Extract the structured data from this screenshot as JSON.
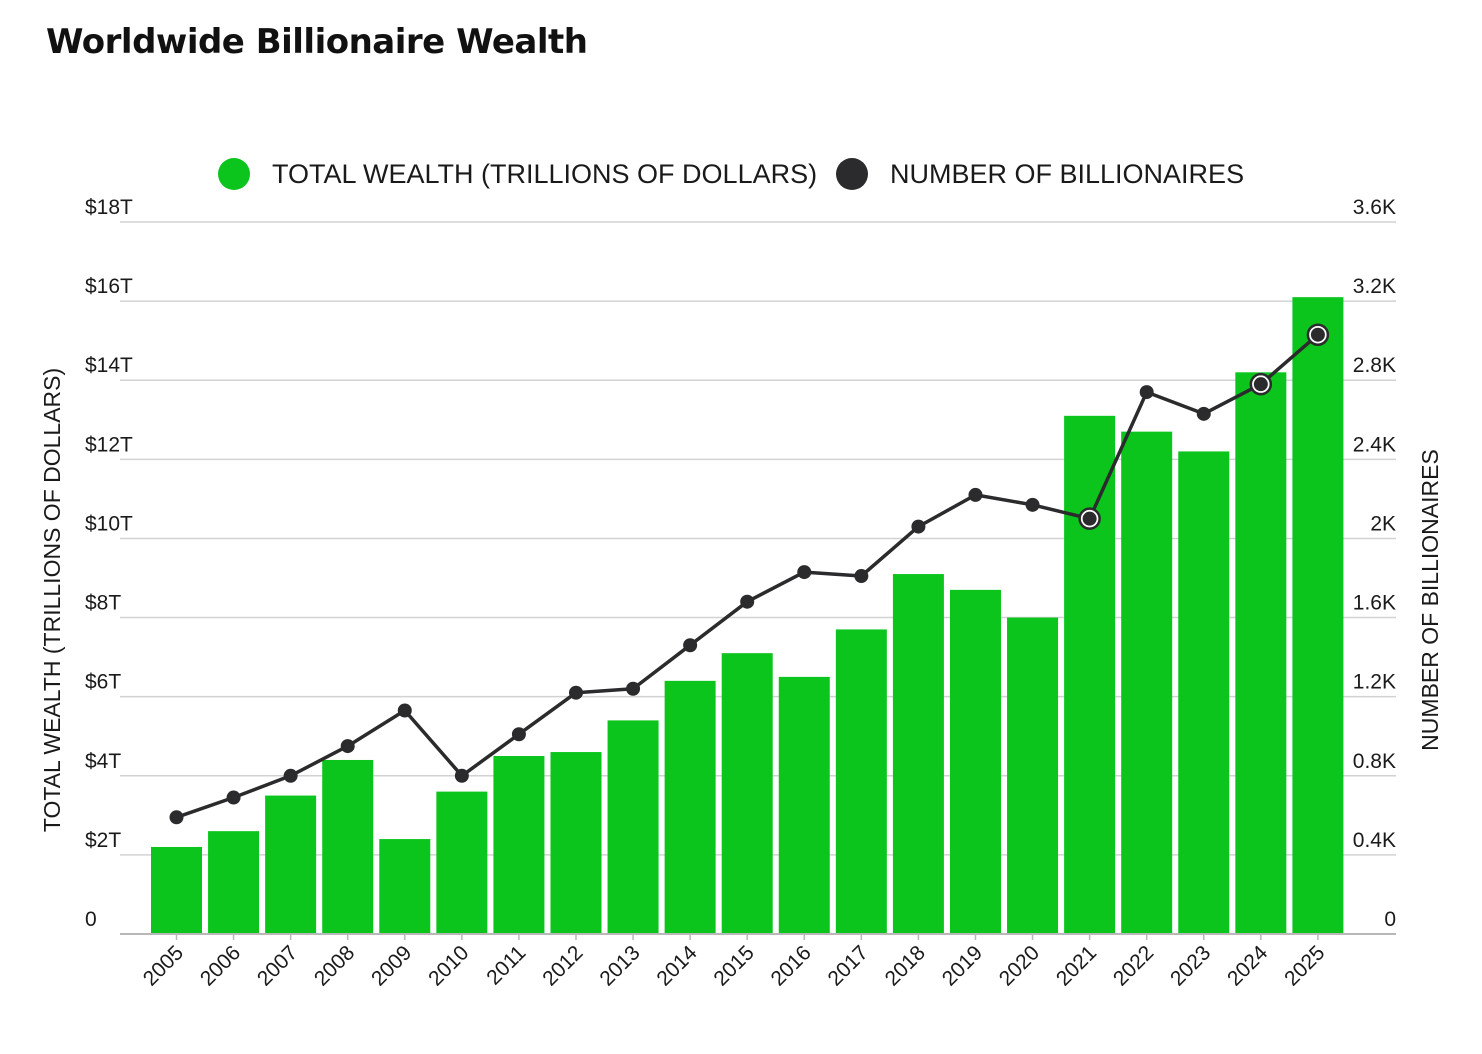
{
  "title": "Worldwide Billionaire Wealth",
  "legend": [
    {
      "label": "TOTAL WEALTH (TRILLIONS OF DOLLARS)",
      "color": "#0bc51c"
    },
    {
      "label": "NUMBER OF BILLIONAIRES",
      "color": "#2b2b2d"
    }
  ],
  "chart_data": {
    "type": "bar",
    "title": "Worldwide Billionaire Wealth",
    "categories": [
      "2005",
      "2006",
      "2007",
      "2008",
      "2009",
      "2010",
      "2011",
      "2012",
      "2013",
      "2014",
      "2015",
      "2016",
      "2017",
      "2018",
      "2019",
      "2020",
      "2021",
      "2022",
      "2023",
      "2024",
      "2025"
    ],
    "series": [
      {
        "name": "TOTAL WEALTH (TRILLIONS OF DOLLARS)",
        "type": "bar",
        "axis": "left",
        "color": "#0bc51c",
        "values": [
          2.2,
          2.6,
          3.5,
          4.4,
          2.4,
          3.6,
          4.5,
          4.6,
          5.4,
          6.4,
          7.1,
          6.5,
          7.7,
          9.1,
          8.7,
          8.0,
          13.1,
          12.7,
          12.2,
          14.2,
          16.1
        ]
      },
      {
        "name": "NUMBER OF BILLIONAIRES",
        "type": "line",
        "axis": "right",
        "color": "#2b2b2d",
        "values": [
          590,
          690,
          800,
          950,
          1130,
          800,
          1010,
          1220,
          1240,
          1460,
          1680,
          1830,
          1810,
          2060,
          2220,
          2170,
          2100,
          2740,
          2630,
          2780,
          3030
        ],
        "hollow_markers": [
          "2021",
          "2024",
          "2025"
        ]
      }
    ],
    "ylabel": "TOTAL WEALTH (TRILLIONS OF DOLLARS)",
    "ylabel_right": "NUMBER OF BILLIONAIRES",
    "ylim": [
      0,
      18
    ],
    "ylim_right": [
      0,
      3600
    ],
    "yticks": [
      "0",
      "$2T",
      "$4T",
      "$6T",
      "$8T",
      "$10T",
      "$12T",
      "$14T",
      "$16T",
      "$18T"
    ],
    "yticks_right": [
      "0",
      "0.4K",
      "0.8K",
      "1.2K",
      "1.6K",
      "2K",
      "2.4K",
      "2.8K",
      "3.2K",
      "3.6K"
    ],
    "grid": true,
    "legend_position": "top-center"
  }
}
